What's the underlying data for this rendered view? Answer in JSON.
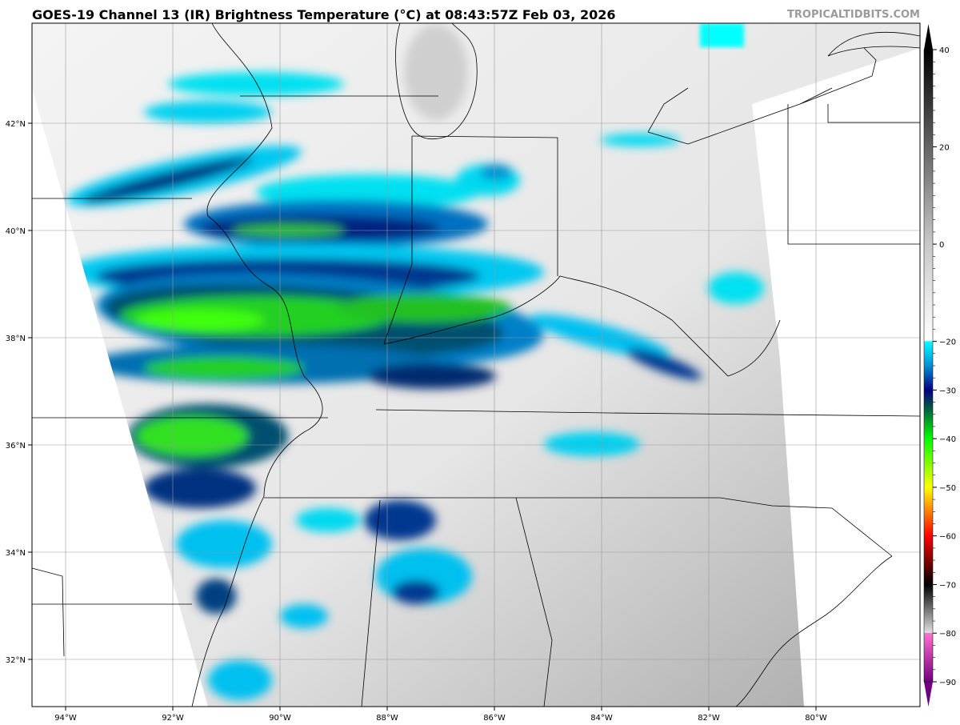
{
  "header": {
    "title": "GOES-19 Channel 13 (IR) Brightness Temperature (°C) at 08:43:57Z Feb 03, 2026",
    "credit": "TROPICALTIDBITS.COM"
  },
  "map": {
    "projection": "geostationary satellite IR imagery",
    "lon_ticks": [
      {
        "value": -94,
        "label": "94°W"
      },
      {
        "value": -92,
        "label": "92°W"
      },
      {
        "value": -90,
        "label": "90°W"
      },
      {
        "value": -88,
        "label": "88°W"
      },
      {
        "value": -86,
        "label": "86°W"
      },
      {
        "value": -84,
        "label": "84°W"
      },
      {
        "value": -82,
        "label": "82°W"
      },
      {
        "value": -80,
        "label": "80°W"
      }
    ],
    "lat_ticks": [
      {
        "value": 42,
        "label": "42°N"
      },
      {
        "value": 40,
        "label": "40°N"
      },
      {
        "value": 38,
        "label": "38°N"
      },
      {
        "value": 36,
        "label": "36°N"
      },
      {
        "value": 34,
        "label": "34°N"
      },
      {
        "value": 32,
        "label": "32°N"
      }
    ],
    "grid": true
  },
  "colorbar": {
    "min": -90,
    "max": 40,
    "ticks": [
      {
        "value": 40,
        "label": "40"
      },
      {
        "value": 20,
        "label": "20"
      },
      {
        "value": 0,
        "label": "0"
      },
      {
        "value": -20,
        "label": "−20"
      },
      {
        "value": -30,
        "label": "−30"
      },
      {
        "value": -40,
        "label": "−40"
      },
      {
        "value": -50,
        "label": "−50"
      },
      {
        "value": -60,
        "label": "−60"
      },
      {
        "value": -70,
        "label": "−70"
      },
      {
        "value": -80,
        "label": "−80"
      },
      {
        "value": -90,
        "label": "−90"
      }
    ],
    "stops": [
      {
        "value": 40,
        "color": "#000000"
      },
      {
        "value": 0,
        "color": "#c8c8c8"
      },
      {
        "value": -19.9,
        "color": "#ffffff"
      },
      {
        "value": -20,
        "color": "#00ffff"
      },
      {
        "value": -25,
        "color": "#0090d0"
      },
      {
        "value": -30,
        "color": "#000080"
      },
      {
        "value": -34,
        "color": "#006040"
      },
      {
        "value": -40,
        "color": "#00ff00"
      },
      {
        "value": -50,
        "color": "#ffff00"
      },
      {
        "value": -55,
        "color": "#ff8000"
      },
      {
        "value": -60,
        "color": "#ff0000"
      },
      {
        "value": -70,
        "color": "#000000"
      },
      {
        "value": -79.9,
        "color": "#e0e0e0"
      },
      {
        "value": -80,
        "color": "#ff70d0"
      },
      {
        "value": -90,
        "color": "#700080"
      }
    ]
  }
}
